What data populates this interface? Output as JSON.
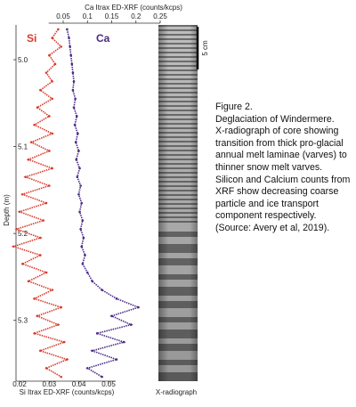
{
  "caption": {
    "heading": "Figure 2.",
    "title": "Deglaciation of Windermere.",
    "body": "X-radiograph of core showing transition from thick pro-glacial annual melt laminae (varves) to thinner snow melt varves. Silicon and Calcium counts from XRF show decreasing coarse particle and ice transport component respectively.",
    "source": "(Source:  Avery et al, 2019)."
  },
  "scale_bar_label": "5 cm",
  "xradiograph_label": "X-radiograph",
  "chart_data": {
    "type": "line",
    "ylabel": "Depth (m)",
    "y_ticks": [
      "5.0",
      "5.1",
      "5.2",
      "5.3"
    ],
    "ylim": [
      4.96,
      5.37
    ],
    "y_inverted": true,
    "grid": false,
    "legend": "inline labels at top",
    "top_axis": {
      "label": "Ca Itrax ED-XRF (counts/kcps)",
      "ticks": [
        "0.05",
        "0.1",
        "0.15",
        "0.2",
        "0.25"
      ],
      "range": [
        0.02,
        0.25
      ]
    },
    "bottom_axis": {
      "label": "Si Itrax ED-XRF (counts/kcps)",
      "ticks": [
        "0.02",
        "0.03",
        "0.04",
        "0.05"
      ],
      "range": [
        0.015,
        0.055
      ]
    },
    "series": [
      {
        "name": "Si",
        "axis": "bottom",
        "color": "#d93a2b",
        "depth": [
          4.965,
          4.975,
          4.985,
          4.995,
          5.005,
          5.015,
          5.025,
          5.035,
          5.045,
          5.055,
          5.065,
          5.075,
          5.085,
          5.095,
          5.105,
          5.115,
          5.125,
          5.135,
          5.145,
          5.155,
          5.165,
          5.175,
          5.185,
          5.195,
          5.205,
          5.215,
          5.225,
          5.235,
          5.245,
          5.255,
          5.265,
          5.275,
          5.285,
          5.295,
          5.305,
          5.315,
          5.325,
          5.335,
          5.345,
          5.355,
          5.365
        ],
        "values": [
          0.033,
          0.031,
          0.034,
          0.03,
          0.032,
          0.029,
          0.031,
          0.027,
          0.031,
          0.026,
          0.03,
          0.025,
          0.031,
          0.024,
          0.03,
          0.023,
          0.031,
          0.022,
          0.03,
          0.021,
          0.029,
          0.02,
          0.028,
          0.019,
          0.027,
          0.018,
          0.027,
          0.021,
          0.029,
          0.023,
          0.031,
          0.025,
          0.034,
          0.026,
          0.033,
          0.025,
          0.035,
          0.027,
          0.036,
          0.029,
          0.034
        ]
      },
      {
        "name": "Ca",
        "axis": "top",
        "color": "#4b2a86",
        "depth": [
          4.965,
          4.975,
          4.985,
          4.995,
          5.005,
          5.015,
          5.025,
          5.035,
          5.045,
          5.055,
          5.065,
          5.075,
          5.085,
          5.095,
          5.105,
          5.115,
          5.125,
          5.135,
          5.145,
          5.155,
          5.165,
          5.175,
          5.185,
          5.195,
          5.205,
          5.215,
          5.225,
          5.235,
          5.245,
          5.255,
          5.265,
          5.275,
          5.285,
          5.295,
          5.305,
          5.315,
          5.325,
          5.335,
          5.345,
          5.355,
          5.365
        ],
        "values": [
          0.058,
          0.062,
          0.064,
          0.066,
          0.068,
          0.07,
          0.072,
          0.07,
          0.075,
          0.072,
          0.078,
          0.074,
          0.08,
          0.076,
          0.082,
          0.077,
          0.084,
          0.079,
          0.086,
          0.082,
          0.088,
          0.084,
          0.09,
          0.086,
          0.092,
          0.088,
          0.095,
          0.09,
          0.1,
          0.11,
          0.13,
          0.16,
          0.205,
          0.15,
          0.19,
          0.12,
          0.175,
          0.11,
          0.16,
          0.1,
          0.13
        ]
      }
    ]
  }
}
